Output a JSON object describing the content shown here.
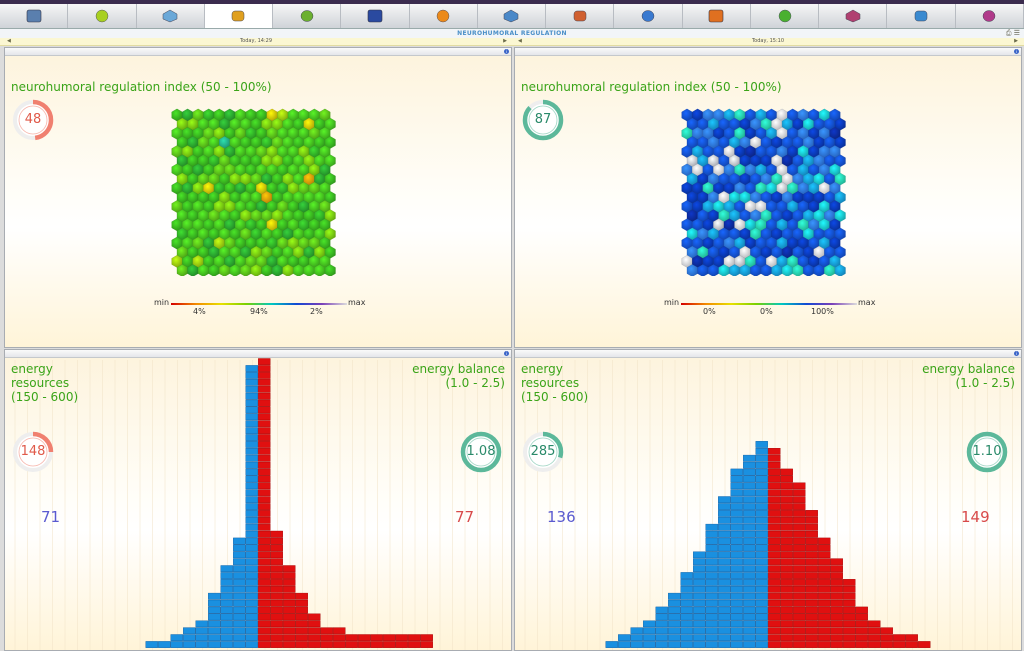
{
  "page_title": "NEUROHUMORAL REGULATION",
  "tabs": [
    {
      "icon": "monitor-chart-icon",
      "color": "#5a7fae"
    },
    {
      "icon": "green-circle-icon",
      "color": "#a8d020"
    },
    {
      "icon": "blue-grid-icon",
      "color": "#6aa8d8"
    },
    {
      "icon": "hex-cubes-icon",
      "color": "#e0a020"
    },
    {
      "icon": "green-organ-icon",
      "color": "#6cb030"
    },
    {
      "icon": "navy-square-icon",
      "color": "#2a4aa0"
    },
    {
      "icon": "orange-sphere-icon",
      "color": "#ec8a1a"
    },
    {
      "icon": "blue-map-icon",
      "color": "#4a88c8"
    },
    {
      "icon": "bar-stack-icon",
      "color": "#d06030"
    },
    {
      "icon": "blue-drop-icon",
      "color": "#3a7ad0"
    },
    {
      "icon": "orange-om-icon",
      "color": "#e07020"
    },
    {
      "icon": "green-cycle-icon",
      "color": "#4ab030"
    },
    {
      "icon": "house-icon",
      "color": "#b04070"
    },
    {
      "icon": "small-bars-icon",
      "color": "#3a8ad0"
    },
    {
      "icon": "brain-icon",
      "color": "#b03a8a"
    }
  ],
  "active_tab": 3,
  "sessions": [
    {
      "time_label": "Today, 14:29",
      "regulation": {
        "title": "neurohumoral regulation index (50 - 100%)",
        "value": "48",
        "value_fraction": 0.48,
        "gauge_color": "#f08070",
        "value_color": "#e05a4a",
        "legend": {
          "min": "min",
          "max": "max",
          "low_pct": "4%",
          "mid_pct": "94%",
          "high_pct": "2%"
        },
        "hex_palette": [
          "#3ab820",
          "#46c420",
          "#5cc41a",
          "#7acc12",
          "#2aa830",
          "#32b428",
          "#9ed010",
          "#d8c808",
          "#e8a008",
          "#24b48c"
        ],
        "hex_weights": [
          30,
          26,
          18,
          10,
          8,
          4,
          2,
          1,
          0.6,
          0.4
        ],
        "hex_seed": 7
      },
      "energy": {
        "resources_label": "energy\nresources\n(150 - 600)",
        "balance_label": "energy balance\n(1.0 - 2.5)",
        "resources_value": "148",
        "resources_fraction": 0.25,
        "balance_value": "1.08",
        "balance_fraction": 1.0,
        "resources_gauge_color": "#f08070",
        "resources_value_color": "#e05a4a",
        "balance_gauge_color": "#5cb89a",
        "balance_value_color": "#2a8a6a",
        "left_count": "71",
        "right_count": "77",
        "left_levels": [
          0,
          1,
          1,
          1,
          1,
          1,
          1,
          1,
          1,
          1,
          1,
          1,
          1,
          1,
          1,
          1,
          1,
          1,
          1,
          1,
          1,
          1,
          1,
          1,
          1,
          1,
          2,
          2,
          2,
          2,
          3,
          3,
          3,
          3,
          4,
          4,
          4,
          4,
          5,
          6,
          7,
          9
        ],
        "right_levels": [
          1,
          1,
          1,
          1,
          1,
          1,
          1,
          1,
          1,
          1,
          1,
          1,
          1,
          1,
          1,
          1,
          1,
          1,
          1,
          1,
          1,
          1,
          1,
          1,
          1,
          2,
          2,
          2,
          2,
          2,
          3,
          3,
          3,
          3,
          4,
          4,
          4,
          5,
          5,
          7,
          14,
          14
        ]
      }
    },
    {
      "time_label": "Today, 15:10",
      "regulation": {
        "title": "neurohumoral regulation index (50 - 100%)",
        "value": "87",
        "value_fraction": 0.87,
        "gauge_color": "#5cb89a",
        "value_color": "#2a8a6a",
        "legend": {
          "min": "min",
          "max": "max",
          "low_pct": "0%",
          "mid_pct": "0%",
          "high_pct": "100%"
        },
        "hex_palette": [
          "#1452d6",
          "#0a3ab8",
          "#2e78e8",
          "#169ee0",
          "#1ac8d0",
          "#28d8b0",
          "#e0e2e8",
          "#c8ccd8",
          "#0c2ca0"
        ],
        "hex_weights": [
          28,
          20,
          14,
          10,
          8,
          6,
          8,
          3,
          3
        ],
        "hex_seed": 23
      },
      "energy": {
        "resources_label": "energy\nresources\n(150 - 600)",
        "balance_label": "energy balance\n(1.0 - 2.5)",
        "resources_value": "285",
        "resources_fraction": 0.3,
        "balance_value": "1.10",
        "balance_fraction": 1.0,
        "resources_gauge_color": "#5cb89a",
        "resources_value_color": "#2a8a6a",
        "balance_gauge_color": "#5cb89a",
        "balance_value_color": "#2a8a6a",
        "left_count": "136",
        "right_count": "149",
        "left_levels": [
          1,
          1,
          2,
          2,
          3,
          3,
          3,
          3,
          4,
          4,
          4,
          4,
          5,
          5,
          5,
          5,
          6,
          6,
          6,
          7,
          7,
          7,
          8,
          8,
          9,
          9,
          10,
          11,
          12,
          13
        ],
        "right_levels": [
          0,
          1,
          1,
          1,
          2,
          2,
          3,
          3,
          3,
          3,
          4,
          4,
          4,
          4,
          5,
          5,
          5,
          6,
          6,
          6,
          7,
          7,
          7,
          7,
          8,
          8,
          9,
          10,
          12,
          13
        ]
      }
    }
  ]
}
